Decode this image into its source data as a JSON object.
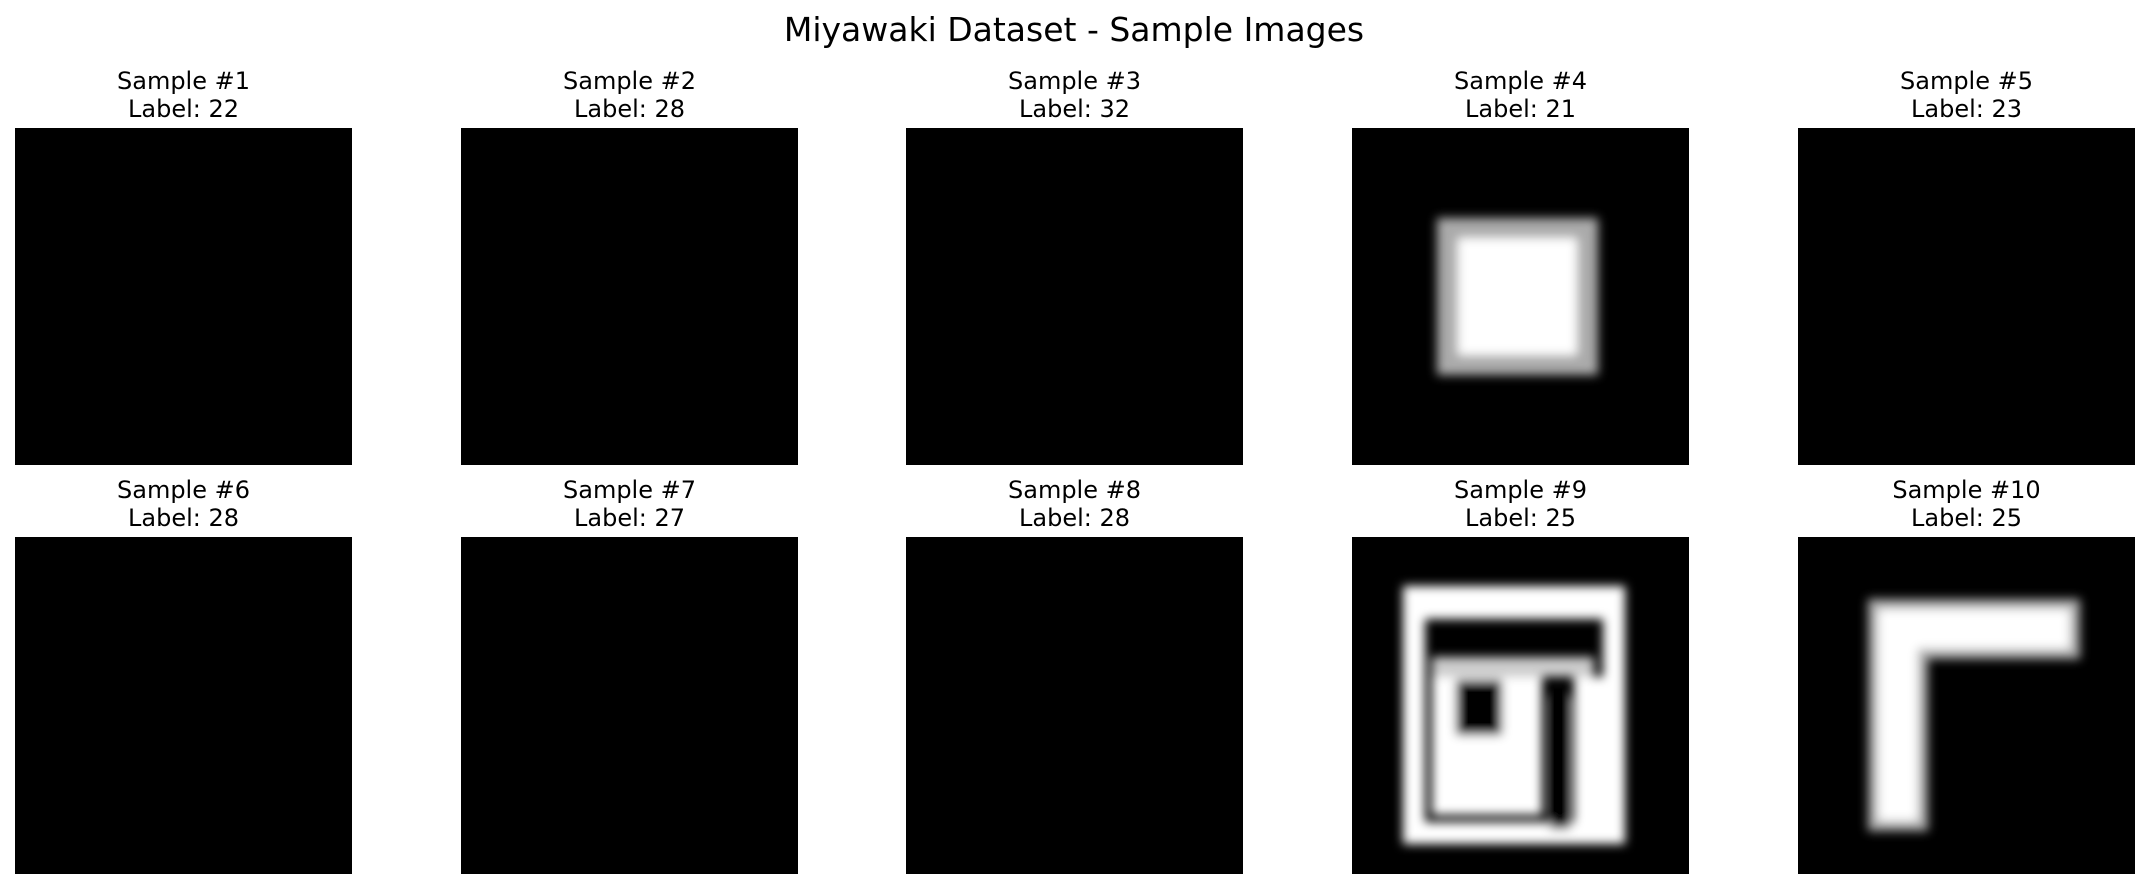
{
  "title": "Miyawaki Dataset - Sample Images",
  "samples": [
    {
      "title": "Sample #1",
      "label": "Label: 22",
      "pattern": "blank"
    },
    {
      "title": "Sample #2",
      "label": "Label: 28",
      "pattern": "blank"
    },
    {
      "title": "Sample #3",
      "label": "Label: 32",
      "pattern": "blank"
    },
    {
      "title": "Sample #4",
      "label": "Label: 21",
      "pattern": "hollow-square"
    },
    {
      "title": "Sample #5",
      "label": "Label: 23",
      "pattern": "blank"
    },
    {
      "title": "Sample #6",
      "label": "Label: 28",
      "pattern": "blank"
    },
    {
      "title": "Sample #7",
      "label": "Label: 27",
      "pattern": "blank"
    },
    {
      "title": "Sample #8",
      "label": "Label: 28",
      "pattern": "blank"
    },
    {
      "title": "Sample #9",
      "label": "Label: 25",
      "pattern": "block-glyph"
    },
    {
      "title": "Sample #10",
      "label": "Label: 25",
      "pattern": "corner-glyph"
    }
  ],
  "colors": {
    "background": "#ffffff",
    "image_background": "#000000",
    "foreground": "#ffffff"
  }
}
